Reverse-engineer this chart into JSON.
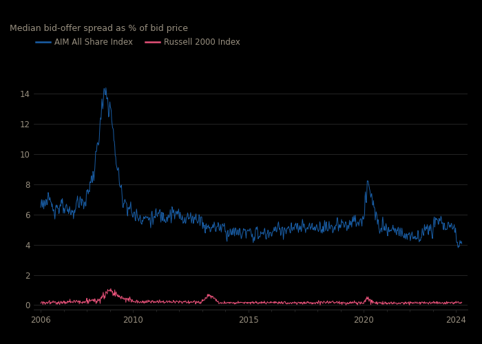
{
  "title": "Median bid-offer spread as % of bid price",
  "legend": [
    "AIM All Share Index",
    "Russell 2000 Index"
  ],
  "line_colors": [
    "#1a5fa8",
    "#e8527a"
  ],
  "background_color": "#000000",
  "text_color": "#999080",
  "grid_color": "#333333",
  "yticks": [
    0,
    2,
    4,
    6,
    8,
    10,
    12,
    14
  ],
  "ylim": [
    -0.3,
    15.2
  ],
  "xlim_start": 2005.7,
  "xlim_end": 2024.5,
  "xtick_years": [
    2006,
    2010,
    2015,
    2020,
    2024
  ]
}
